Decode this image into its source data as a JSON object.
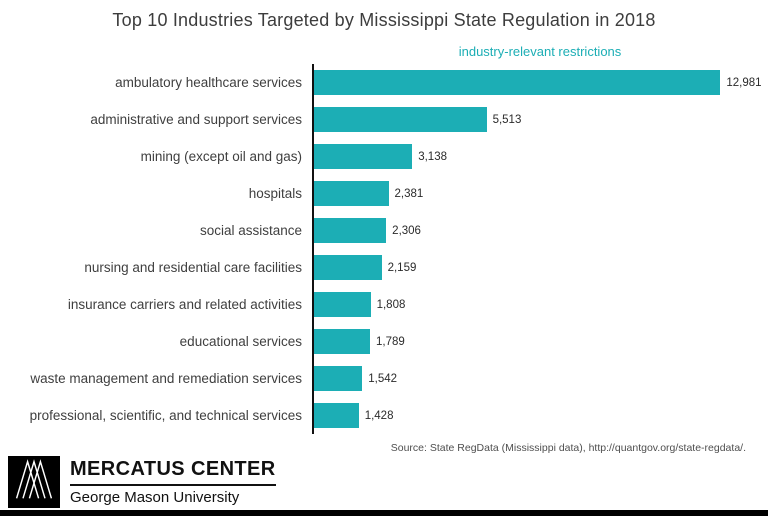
{
  "title": "Top 10 Industries Targeted by Mississippi State Regulation in 2018",
  "legend": "industry-relevant restrictions",
  "source": "Source: State RegData (Mississippi data), http://quantgov.org/state-regdata/.",
  "footer": {
    "org": "MERCATUS CENTER",
    "university": "George Mason University"
  },
  "colors": {
    "bar": "#1caeb5",
    "legend_text": "#1caeb5",
    "axis": "#111111",
    "title_text": "#3d3d3d"
  },
  "chart_data": {
    "type": "bar",
    "orientation": "horizontal",
    "title": "Top 10 Industries Targeted by Mississippi State Regulation in 2018",
    "series_label": "industry-relevant restrictions",
    "categories": [
      "ambulatory healthcare services",
      "administrative and support services",
      "mining (except oil and gas)",
      "hospitals",
      "social assistance",
      "nursing and residential care facilities",
      "insurance carriers and related activities",
      "educational services",
      "waste management and remediation services",
      "professional, scientific, and technical services"
    ],
    "values": [
      12981,
      5513,
      3138,
      2381,
      2306,
      2159,
      1808,
      1789,
      1542,
      1428
    ],
    "value_labels": [
      "12,981",
      "5,513",
      "3,138",
      "2,381",
      "2,306",
      "2,159",
      "1,808",
      "1,789",
      "1,542",
      "1,428"
    ],
    "xlabel": "",
    "ylabel": "",
    "xlim": [
      0,
      13500
    ],
    "grid": false,
    "legend_position": "top-center"
  }
}
